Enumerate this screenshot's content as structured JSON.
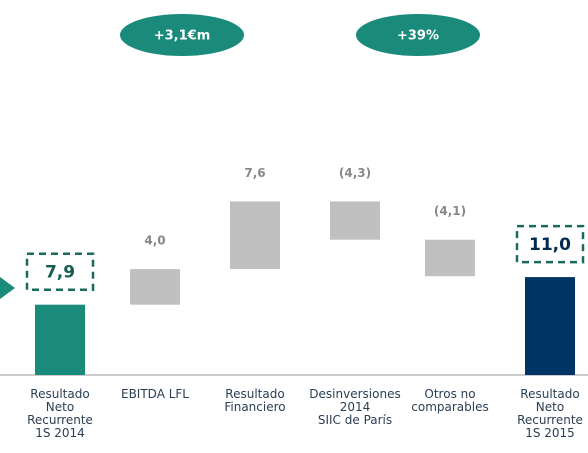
{
  "chart_data": {
    "type": "waterfall",
    "categories": [
      "Resultado\nNeto\nRecurrente\n1S 2014",
      "EBITDA LFL",
      "Resultado\nFinanciero",
      "Desinversiones\n2014\nSIIC de París",
      "Otros no\ncomparables",
      "Resultado\nNeto\nRecurrente\n1S 2015"
    ],
    "values": [
      7.9,
      4.0,
      7.6,
      -4.3,
      -4.1,
      11.0
    ],
    "value_labels": [
      "7,9",
      "4,0",
      "7,6",
      "(4,3)",
      "(4,1)",
      "11,0"
    ],
    "colors": [
      "#1a8a7a",
      "#c0c0c0",
      "#c0c0c0",
      "#c0c0c0",
      "#c0c0c0",
      "#003366"
    ],
    "annotations": [
      "+3,1€m",
      "+39%"
    ]
  }
}
